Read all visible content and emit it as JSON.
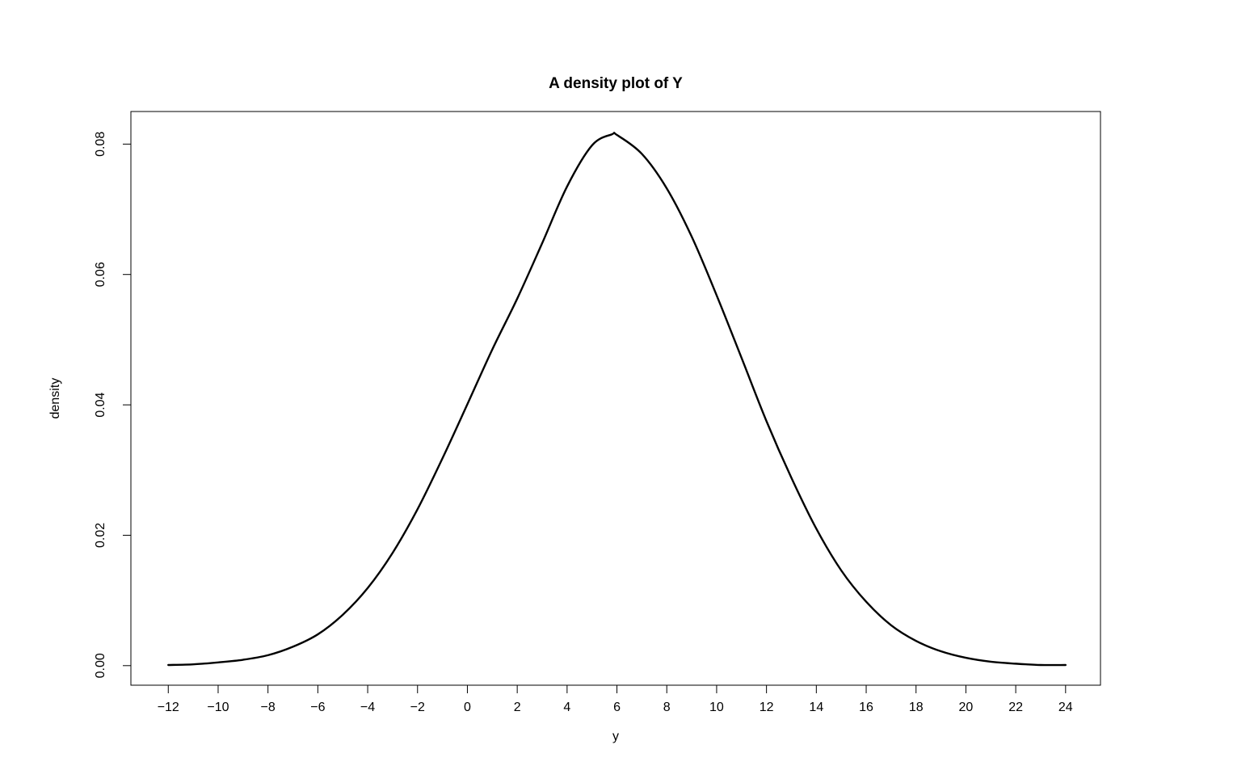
{
  "chart_data": {
    "type": "line",
    "title": "A density plot of Y",
    "xlabel": "y",
    "ylabel": "density",
    "xlim": [
      -13.5,
      25.4
    ],
    "ylim": [
      -0.003,
      0.085
    ],
    "x_ticks": [
      -12,
      -10,
      -8,
      -6,
      -4,
      -2,
      0,
      2,
      4,
      6,
      8,
      10,
      12,
      14,
      16,
      18,
      20,
      22,
      24
    ],
    "x_tick_labels": [
      "−12",
      "−10",
      "−8",
      "−6",
      "−4",
      "−2",
      "0",
      "2",
      "4",
      "6",
      "8",
      "10",
      "12",
      "14",
      "16",
      "18",
      "20",
      "22",
      "24"
    ],
    "y_ticks": [
      0.0,
      0.02,
      0.04,
      0.06,
      0.08
    ],
    "y_tick_labels": [
      "0.00",
      "0.02",
      "0.04",
      "0.06",
      "0.08"
    ],
    "grid": false,
    "series": [
      {
        "x": [
          -12,
          -11,
          -10,
          -9,
          -8,
          -7,
          -6,
          -5,
          -4,
          -3,
          -2,
          -1,
          0,
          1,
          2,
          3,
          4,
          5,
          5.8,
          6,
          7,
          8,
          9,
          10,
          11,
          12,
          13,
          14,
          15,
          16,
          17,
          18,
          19,
          20,
          21,
          22,
          23,
          24
        ],
        "y": [
          0.0001,
          0.0002,
          0.0005,
          0.0009,
          0.0016,
          0.0029,
          0.0048,
          0.0078,
          0.0119,
          0.0173,
          0.024,
          0.0318,
          0.0401,
          0.0485,
          0.0563,
          0.0648,
          0.0735,
          0.0798,
          0.0815,
          0.0814,
          0.0785,
          0.0732,
          0.0658,
          0.0568,
          0.0472,
          0.0375,
          0.0288,
          0.021,
          0.0146,
          0.0098,
          0.0062,
          0.0038,
          0.0022,
          0.0012,
          0.0006,
          0.0003,
          0.0001,
          0.0001
        ]
      }
    ],
    "colors": {
      "line": "#000000",
      "axes": "#000000",
      "background": "#ffffff"
    }
  }
}
